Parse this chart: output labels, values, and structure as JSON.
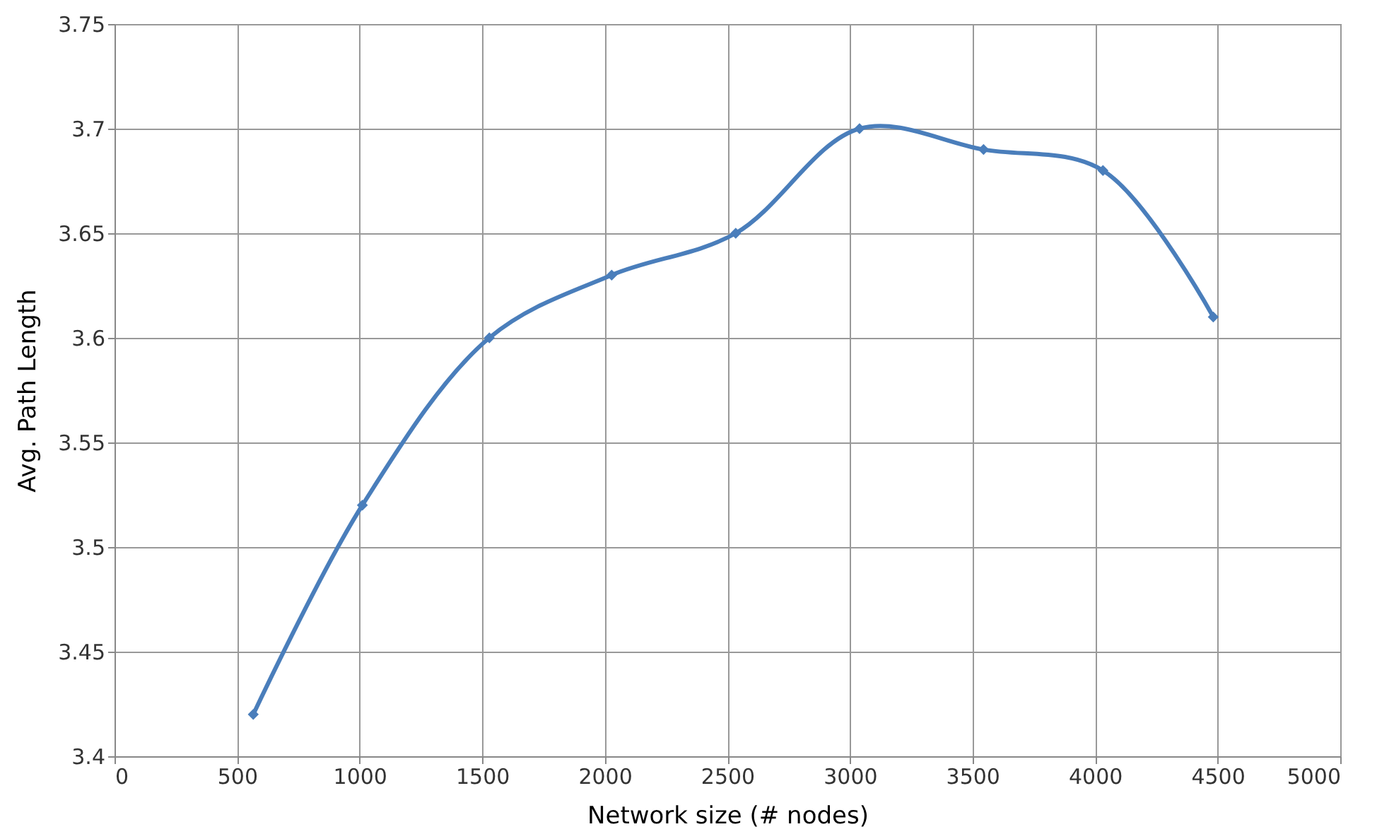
{
  "chart_data": {
    "type": "line",
    "xlabel": "Network size (# nodes)",
    "ylabel": "Avg. Path Length",
    "x": [
      566,
      1011,
      1529,
      2028,
      2534,
      3039,
      3545,
      4032,
      4482
    ],
    "series": [
      {
        "color": "#4a7ebb",
        "values": [
          3.42,
          3.52,
          3.6,
          3.63,
          3.65,
          3.7,
          3.69,
          3.68,
          3.61
        ]
      }
    ],
    "xlim": [
      0,
      5000
    ],
    "xticks": [
      0,
      500,
      1000,
      1500,
      2000,
      2500,
      3000,
      3500,
      4000,
      4500,
      5000
    ],
    "ylim": [
      3.4,
      3.75
    ],
    "yticks": [
      3.4,
      3.45,
      3.5,
      3.55,
      3.6,
      3.65,
      3.7,
      3.75
    ],
    "grid": true,
    "marker": "diamond",
    "line_style": "solid"
  }
}
